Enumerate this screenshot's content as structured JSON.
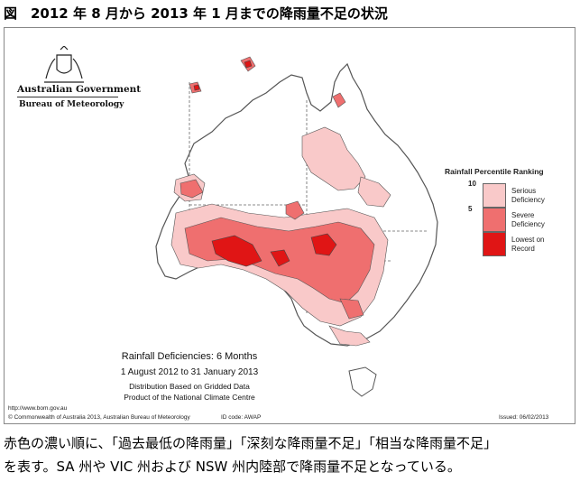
{
  "figure_title": "図　2012 年 8 月から 2013 年 1 月までの降雨量不足の状況",
  "header": {
    "government": "Australian Government",
    "bureau": "Bureau of Meteorology"
  },
  "legend": {
    "title": "Rainfall Percentile Ranking",
    "ticks": [
      "10",
      "5"
    ],
    "items": [
      {
        "label_line1": "Serious",
        "label_line2": "Deficiency",
        "color": "#f9c9c9"
      },
      {
        "label_line1": "Severe",
        "label_line2": "Deficiency",
        "color": "#ef6f6f"
      },
      {
        "label_line1": "Lowest on",
        "label_line2": "Record",
        "color": "#e01515"
      }
    ]
  },
  "map_caption": {
    "line1": "Rainfall Deficiencies: 6 Months",
    "line2": "1 August 2012 to 31 January 2013",
    "line3": "Distribution Based on Gridded Data",
    "line4": "Product of the National Climate Centre"
  },
  "footer": {
    "url": "http://www.bom.gov.au",
    "copyright": "© Commonwealth of Australia 2013, Australian Bureau of Meteorology",
    "id_code": "ID code: AWAP",
    "issued": "Issued: 06/02/2013"
  },
  "description": {
    "line1": "赤色の濃い順に、「過去最低の降雨量」「深刻な降雨量不足」「相当な降雨量不足」",
    "line2": "を表す。SA 州や VIC 州および NSW 州内陸部で降雨量不足となっている。"
  },
  "colors": {
    "serious": "#f9c9c9",
    "severe": "#ef6f6f",
    "lowest": "#e01515",
    "outline": "#555555"
  }
}
